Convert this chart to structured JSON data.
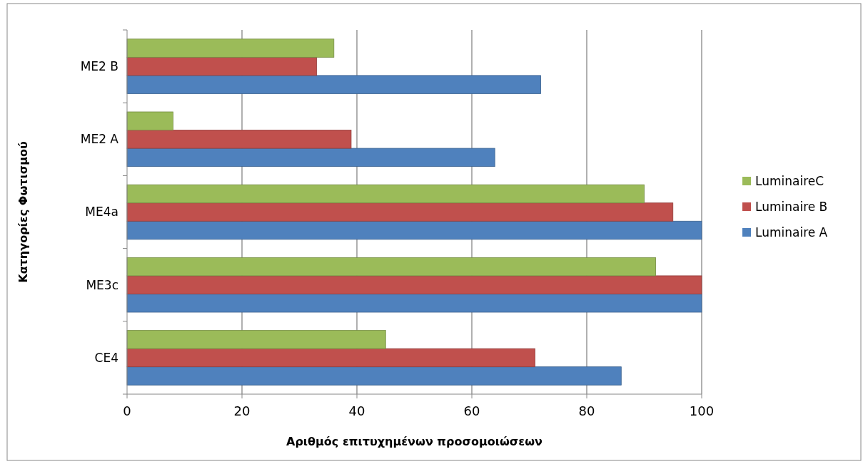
{
  "chart_data": {
    "type": "bar",
    "orientation": "horizontal",
    "xlabel": "Αριθμός επιτυχημένων προσομοιώσεων",
    "ylabel": "Κατηγορίες Φωτισμού",
    "categories": [
      "ME2 B",
      "ME2 A",
      "ME4a",
      "ME3c",
      "CE4"
    ],
    "series": [
      {
        "name": "Luminaire A",
        "color": "#4f81bd",
        "values": [
          72,
          64,
          100,
          100,
          86
        ]
      },
      {
        "name": "Luminaire B",
        "color": "#c0504d",
        "values": [
          33,
          39,
          95,
          100,
          71
        ]
      },
      {
        "name": "LuminaireC",
        "color": "#9bbb59",
        "values": [
          36,
          8,
          90,
          92,
          45
        ]
      }
    ],
    "xlim": [
      0,
      100
    ],
    "xticks": [
      0,
      20,
      40,
      60,
      80,
      100
    ],
    "grid": "x",
    "legend": "right"
  }
}
